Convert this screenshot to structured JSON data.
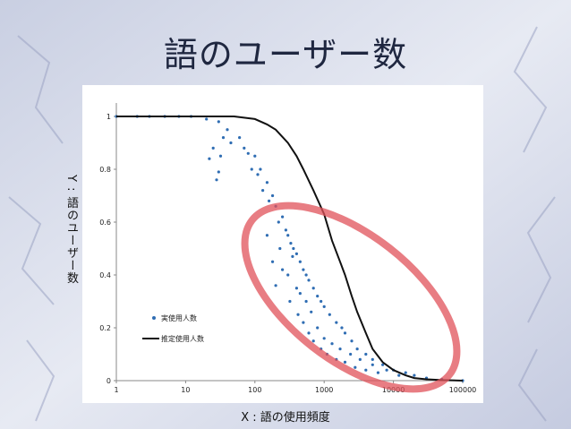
{
  "slide": {
    "title": "語のユーザー数",
    "ylabel": "Y : 語のユーザー数",
    "xlabel": "X : 語の使用頻度"
  },
  "colors": {
    "points": "#2f6db3",
    "curve": "#111111",
    "highlight": "#e0525a",
    "background": "#dfe3ef"
  },
  "chart_data": {
    "type": "scatter",
    "x_scale": "log",
    "xlim": [
      1,
      100000
    ],
    "ylim": [
      0,
      1
    ],
    "x_ticks": [
      "1",
      "10",
      "100",
      "1000",
      "10000",
      "100000"
    ],
    "y_ticks": [
      "0",
      "0.2",
      "0.4",
      "0.6",
      "0.8",
      "1"
    ],
    "legend_position": "left",
    "series": [
      {
        "name": "実使用人数",
        "kind": "points",
        "points": [
          [
            1,
            1
          ],
          [
            2,
            1
          ],
          [
            3,
            1
          ],
          [
            5,
            1
          ],
          [
            8,
            1
          ],
          [
            12,
            1
          ],
          [
            20,
            0.99
          ],
          [
            30,
            0.98
          ],
          [
            35,
            0.92
          ],
          [
            40,
            0.95
          ],
          [
            22,
            0.84
          ],
          [
            25,
            0.88
          ],
          [
            28,
            0.76
          ],
          [
            30,
            0.79
          ],
          [
            32,
            0.85
          ],
          [
            45,
            0.9
          ],
          [
            60,
            0.92
          ],
          [
            70,
            0.88
          ],
          [
            80,
            0.86
          ],
          [
            90,
            0.8
          ],
          [
            100,
            0.85
          ],
          [
            110,
            0.78
          ],
          [
            120,
            0.8
          ],
          [
            130,
            0.72
          ],
          [
            150,
            0.75
          ],
          [
            160,
            0.68
          ],
          [
            180,
            0.7
          ],
          [
            200,
            0.66
          ],
          [
            220,
            0.6
          ],
          [
            250,
            0.62
          ],
          [
            280,
            0.57
          ],
          [
            300,
            0.55
          ],
          [
            330,
            0.52
          ],
          [
            360,
            0.5
          ],
          [
            400,
            0.48
          ],
          [
            450,
            0.45
          ],
          [
            500,
            0.42
          ],
          [
            550,
            0.4
          ],
          [
            600,
            0.38
          ],
          [
            700,
            0.35
          ],
          [
            800,
            0.32
          ],
          [
            900,
            0.3
          ],
          [
            1000,
            0.28
          ],
          [
            1200,
            0.25
          ],
          [
            1500,
            0.22
          ],
          [
            1800,
            0.2
          ],
          [
            2000,
            0.18
          ],
          [
            2500,
            0.15
          ],
          [
            3000,
            0.12
          ],
          [
            4000,
            0.1
          ],
          [
            5000,
            0.08
          ],
          [
            7000,
            0.06
          ],
          [
            10000,
            0.04
          ],
          [
            15000,
            0.03
          ],
          [
            20000,
            0.02
          ],
          [
            30000,
            0.01
          ],
          [
            50000,
            0.005
          ],
          [
            100000,
            0
          ],
          [
            150,
            0.55
          ],
          [
            180,
            0.45
          ],
          [
            200,
            0.36
          ],
          [
            230,
            0.5
          ],
          [
            250,
            0.42
          ],
          [
            300,
            0.4
          ],
          [
            320,
            0.3
          ],
          [
            350,
            0.47
          ],
          [
            400,
            0.35
          ],
          [
            420,
            0.25
          ],
          [
            450,
            0.33
          ],
          [
            500,
            0.22
          ],
          [
            550,
            0.3
          ],
          [
            600,
            0.18
          ],
          [
            650,
            0.26
          ],
          [
            700,
            0.15
          ],
          [
            800,
            0.2
          ],
          [
            900,
            0.12
          ],
          [
            1000,
            0.16
          ],
          [
            1100,
            0.1
          ],
          [
            1300,
            0.14
          ],
          [
            1500,
            0.08
          ],
          [
            1700,
            0.12
          ],
          [
            2000,
            0.07
          ],
          [
            2400,
            0.1
          ],
          [
            2800,
            0.05
          ],
          [
            3300,
            0.08
          ],
          [
            4000,
            0.04
          ],
          [
            5000,
            0.06
          ],
          [
            6000,
            0.03
          ],
          [
            8000,
            0.04
          ],
          [
            12000,
            0.02
          ]
        ]
      },
      {
        "name": "推定使用人数",
        "kind": "line",
        "points": [
          [
            1,
            1
          ],
          [
            10,
            1
          ],
          [
            50,
            1
          ],
          [
            100,
            0.99
          ],
          [
            150,
            0.97
          ],
          [
            200,
            0.95
          ],
          [
            300,
            0.9
          ],
          [
            400,
            0.85
          ],
          [
            500,
            0.8
          ],
          [
            700,
            0.72
          ],
          [
            1000,
            0.63
          ],
          [
            1300,
            0.53
          ],
          [
            1700,
            0.45
          ],
          [
            2000,
            0.4
          ],
          [
            2500,
            0.32
          ],
          [
            3000,
            0.26
          ],
          [
            4000,
            0.18
          ],
          [
            5000,
            0.12
          ],
          [
            7000,
            0.07
          ],
          [
            10000,
            0.04
          ],
          [
            15000,
            0.02
          ],
          [
            20000,
            0.01
          ],
          [
            30000,
            0.005
          ],
          [
            50000,
            0.002
          ],
          [
            100000,
            0
          ]
        ]
      }
    ]
  }
}
